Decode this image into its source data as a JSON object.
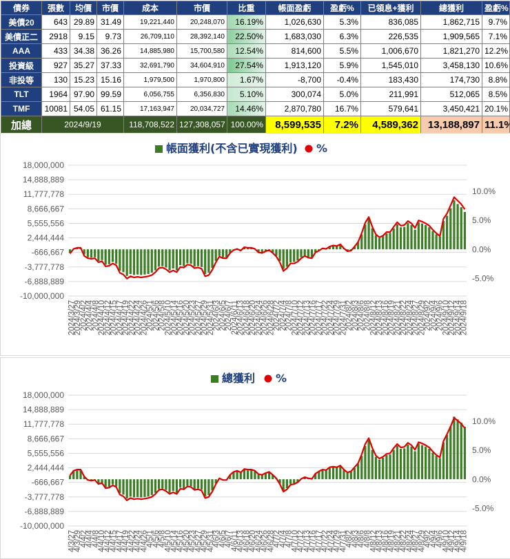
{
  "table": {
    "headers": [
      "債券",
      "張數",
      "均價",
      "市價",
      "成本",
      "市價",
      "比重",
      "帳面盈虧",
      "盈虧%",
      "已領息+獲利",
      "總獲利",
      "盈虧%"
    ],
    "rows": [
      {
        "name": "美債20",
        "qty": "643",
        "avg": "29.89",
        "price": "31.49",
        "cost": "19,221,440",
        "value": "20,248,070",
        "weight": "16.19%",
        "wpct": 16.19,
        "paper": "1,026,630",
        "paper_pct": "5.3%",
        "div": "836,085",
        "total": "1,862,715",
        "total_pct": "9.7%"
      },
      {
        "name": "美債正二",
        "qty": "2918",
        "avg": "9.15",
        "price": "9.73",
        "cost": "26,709,110",
        "value": "28,392,140",
        "weight": "22.50%",
        "wpct": 22.5,
        "paper": "1,683,030",
        "paper_pct": "6.3%",
        "div": "226,535",
        "total": "1,909,565",
        "total_pct": "7.1%"
      },
      {
        "name": "AAA",
        "qty": "433",
        "avg": "34.38",
        "price": "36.26",
        "cost": "14,885,980",
        "value": "15,700,580",
        "weight": "12.54%",
        "wpct": 12.54,
        "paper": "814,600",
        "paper_pct": "5.5%",
        "div": "1,006,670",
        "total": "1,821,270",
        "total_pct": "12.2%"
      },
      {
        "name": "投資級",
        "qty": "927",
        "avg": "35.27",
        "price": "37.33",
        "cost": "32,691,790",
        "value": "34,604,910",
        "weight": "27.54%",
        "wpct": 27.54,
        "paper": "1,913,120",
        "paper_pct": "5.9%",
        "div": "1,545,010",
        "total": "3,458,130",
        "total_pct": "10.6%"
      },
      {
        "name": "非投等",
        "qty": "130",
        "avg": "15.23",
        "price": "15.16",
        "cost": "1,979,500",
        "value": "1,970,800",
        "weight": "1.67%",
        "wpct": 1.67,
        "paper": "-8,700",
        "paper_pct": "-0.4%",
        "div": "183,430",
        "total": "174,730",
        "total_pct": "8.8%"
      },
      {
        "name": "TLT",
        "qty": "1964",
        "avg": "97.90",
        "price": "99.59",
        "cost": "6,056,755",
        "value": "6,356,830",
        "weight": "5.10%",
        "wpct": 5.1,
        "paper": "300,074",
        "paper_pct": "5.0%",
        "div": "211,991",
        "total": "512,065",
        "total_pct": "8.5%"
      },
      {
        "name": "TMF",
        "qty": "10081",
        "avg": "54.05",
        "price": "61.15",
        "cost": "17,163,947",
        "value": "20,034,727",
        "weight": "14.46%",
        "wpct": 14.46,
        "paper": "2,870,780",
        "paper_pct": "16.7%",
        "div": "579,641",
        "total": "3,450,421",
        "total_pct": "20.1%"
      }
    ],
    "total": {
      "label": "加總",
      "date": "2024/9/19",
      "cost": "118,708,522",
      "value": "127,308,057",
      "weight": "100.00%",
      "paper": "8,599,535",
      "paper_pct": "7.2%",
      "div": "4,589,362",
      "total": "13,188,897",
      "total_pct": "11.1%"
    }
  },
  "chart_data": [
    {
      "type": "bar",
      "title": "",
      "legend": [
        "帳面獲利(不含已實現獲利)",
        "%"
      ],
      "legend_position": "top",
      "colors": {
        "bar": "#3a7d22",
        "line": "#e00000"
      },
      "y_ticks": [
        "18,000,000",
        "14,888,889",
        "11,777,778",
        "8,666,667",
        "5,555,556",
        "2,444,444",
        "-666,667",
        "-3,777,778",
        "-6,888,889",
        "-10,000,000"
      ],
      "y2_ticks": [
        "10.0%",
        "5.0%",
        "0.0%",
        "-5.0%"
      ],
      "ylim": [
        -10000000,
        18000000
      ],
      "y2lim": [
        -0.08,
        0.145
      ],
      "grid": true,
      "x_tick_labels": [
        "2024/3/27",
        "2024/3/29",
        "2024/4/2",
        "2024/4/4",
        "2024/4/8",
        "2024/4/10",
        "2024/4/12",
        "2024/4/15",
        "2024/4/17",
        "2024/4/19",
        "2024/4/22",
        "2024/4/24",
        "2024/4/26",
        "2024/5/1",
        "2024/5/6",
        "2024/5/8",
        "2024/5/10",
        "2024/5/14",
        "2024/5/16",
        "2024/5/20",
        "2024/5/23",
        "2024/5/27",
        "2024/5/29",
        "2024/5/31",
        "2024/6/3",
        "2024/6/5",
        "2024/6/7",
        "2024/6/11",
        "2024/6/13",
        "2024/6/18",
        "2024/6/20",
        "2024/6/24",
        "2024/6/26",
        "2024/6/28",
        "2024/7/2",
        "2024/7/4",
        "2024/7/8",
        "2024/7/10",
        "2024/7/12",
        "2024/7/13",
        "2024/7/16",
        "2024/7/17",
        "2024/7/22",
        "2024/7/24",
        "2024/7/29",
        "2024/7/31",
        "2024/8/2",
        "2024/8/3",
        "2024/8/6",
        "2024/8/8",
        "2024/8/12",
        "2024/8/13",
        "2024/8/16",
        "2024/8/19",
        "2024/8/21",
        "2024/8/22",
        "2024/8/24",
        "2024/8/27",
        "2024/8/29",
        "2024/9/2",
        "2024/9/4",
        "2024/9/6",
        "2024/9/10",
        "2024/9/12",
        "2024/9/14",
        "2024/9/18"
      ],
      "series": [
        {
          "name": "帳面獲利(不含已實現獲利)",
          "values": [
            -800000,
            100000,
            300000,
            300000,
            -1100000,
            -1700000,
            -1800000,
            -1700000,
            -2500000,
            -2300000,
            -3300000,
            -3200000,
            -2700000,
            -3100000,
            -4600000,
            -4900000,
            -5700000,
            -5300000,
            -5500000,
            -5400000,
            -5500000,
            -5400000,
            -5300000,
            -5000000,
            -4500000,
            -3700000,
            -3600000,
            -3900000,
            -4500000,
            -4100000,
            -4500000,
            -3400000,
            -3600000,
            -3000000,
            -3100000,
            -3700000,
            -3600000,
            -3800000,
            -5300000,
            -5000000,
            -4000000,
            -2500000,
            -1400000,
            -1700000,
            -1700000,
            -700000,
            -100000,
            100000,
            -200000,
            500000,
            300000,
            400000,
            100000,
            -600000,
            -700000,
            -300000,
            -100000,
            -700000,
            -1400000,
            -2500000,
            -4200000,
            -3700000,
            -2800000,
            -2700000,
            -2400000,
            -1700000,
            -1300000,
            -1600000,
            -1700000,
            -600000,
            -200000,
            200000,
            100000,
            600000,
            800000,
            700000,
            1000000,
            200000,
            -400000,
            -200000,
            600000,
            1500000,
            3200000,
            5300000,
            6500000,
            4500000,
            3000000,
            2400000,
            2800000,
            3400000,
            3500000,
            4500000,
            5400000,
            4700000,
            4800000,
            5600000,
            5200000,
            4200000,
            5800000,
            5500000,
            5200000,
            4700000,
            3900000,
            3200000,
            2700000,
            6100000,
            7200000,
            8800000,
            10500000,
            9700000,
            9000000,
            8000000
          ]
        },
        {
          "name": "%",
          "values": [
            -0.007,
            0.001,
            0.003,
            0.003,
            -0.011,
            -0.015,
            -0.016,
            -0.015,
            -0.022,
            -0.02,
            -0.029,
            -0.028,
            -0.024,
            -0.027,
            -0.04,
            -0.043,
            -0.05,
            -0.046,
            -0.048,
            -0.047,
            -0.048,
            -0.047,
            -0.046,
            -0.044,
            -0.039,
            -0.032,
            -0.031,
            -0.034,
            -0.039,
            -0.036,
            -0.039,
            -0.03,
            -0.031,
            -0.026,
            -0.027,
            -0.032,
            -0.031,
            -0.033,
            -0.046,
            -0.044,
            -0.035,
            -0.022,
            -0.012,
            -0.015,
            -0.015,
            -0.006,
            -0.001,
            0.001,
            -0.002,
            0.004,
            0.003,
            0.003,
            0.001,
            -0.005,
            -0.006,
            -0.003,
            -0.001,
            -0.006,
            -0.012,
            -0.022,
            -0.037,
            -0.032,
            -0.024,
            -0.024,
            -0.021,
            -0.015,
            -0.011,
            -0.014,
            -0.015,
            -0.005,
            -0.002,
            0.002,
            0.001,
            0.005,
            0.007,
            0.006,
            0.009,
            0.002,
            -0.003,
            -0.002,
            0.005,
            0.013,
            0.028,
            0.046,
            0.056,
            0.039,
            0.026,
            0.021,
            0.024,
            0.03,
            0.03,
            0.039,
            0.047,
            0.041,
            0.042,
            0.049,
            0.045,
            0.037,
            0.05,
            0.048,
            0.045,
            0.041,
            0.034,
            0.028,
            0.023,
            0.053,
            0.062,
            0.076,
            0.09,
            0.084,
            0.078,
            0.069
          ]
        }
      ]
    },
    {
      "type": "bar",
      "title": "",
      "legend": [
        "總獲利",
        "%"
      ],
      "legend_position": "top",
      "colors": {
        "bar": "#3a7d22",
        "line": "#e00000"
      },
      "y_ticks": [
        "18,000,000",
        "14,888,889",
        "11,777,778",
        "8,666,667",
        "5,555,556",
        "2,444,444",
        "-666,667",
        "-3,777,778",
        "-6,888,889",
        "-10,000,000"
      ],
      "y2_ticks": [
        "10.0%",
        "5.0%",
        "0.0%",
        "-5.0%"
      ],
      "ylim": [
        -10000000,
        18000000
      ],
      "y2lim": [
        -0.08,
        0.145
      ],
      "grid": true,
      "x_tick_labels": [
        "4/3/27",
        "4/3/29",
        "4/4/2",
        "4/4/4",
        "4/4/8",
        "4/4/10",
        "4/4/12",
        "4/4/15",
        "4/4/17",
        "4/4/19",
        "4/4/22",
        "4/4/24",
        "4/4/26",
        "4/5/1",
        "4/5/6",
        "4/5/8",
        "4/5/10",
        "4/5/14",
        "4/5/16",
        "4/5/20",
        "4/5/23",
        "4/5/27",
        "4/5/29",
        "4/5/31",
        "4/6/3",
        "4/6/5",
        "4/6/7",
        "4/6/11",
        "4/6/13",
        "4/6/18",
        "4/6/20",
        "4/6/24",
        "4/6/26",
        "4/6/28",
        "4/7/2",
        "4/7/4",
        "4/7/8",
        "4/7/10",
        "4/7/12",
        "4/7/13",
        "4/7/16",
        "4/7/17",
        "4/7/22",
        "4/7/24",
        "4/7/29",
        "4/7/31",
        "4/8/2",
        "4/8/3",
        "4/8/6",
        "4/8/8",
        "4/8/12",
        "4/8/13",
        "4/8/16",
        "4/8/19",
        "4/8/21",
        "4/8/22",
        "4/8/24",
        "4/8/27",
        "4/8/29",
        "4/9/2",
        "4/9/4",
        "4/9/6",
        "4/9/10",
        "4/9/12",
        "4/9/14",
        "4/9/18"
      ],
      "series": [
        {
          "name": "總獲利",
          "values": [
            800000,
            1700000,
            1900000,
            1900000,
            500000,
            -100000,
            -200000,
            -100000,
            -900000,
            -700000,
            -1700000,
            -1600000,
            -1100000,
            -1500000,
            -3000000,
            -3300000,
            -4100000,
            -3700000,
            -3900000,
            -3800000,
            -3900000,
            -3800000,
            -3700000,
            -3400000,
            -2900000,
            -2100000,
            -2000000,
            -2300000,
            -2900000,
            -2500000,
            -2900000,
            -1800000,
            -2000000,
            -1400000,
            -1500000,
            -2100000,
            -2000000,
            -2200000,
            -3700000,
            -3400000,
            -2400000,
            -900000,
            200000,
            -100000,
            -100000,
            900000,
            1500000,
            1700000,
            1400000,
            2100000,
            1900000,
            2000000,
            1700000,
            1000000,
            900000,
            1300000,
            1500000,
            900000,
            200000,
            -900000,
            -2400000,
            -1900000,
            -1000000,
            -900000,
            -600000,
            100000,
            500000,
            200000,
            100000,
            1200000,
            1600000,
            2000000,
            1900000,
            2400000,
            2600000,
            2500000,
            2800000,
            2000000,
            1400000,
            1600000,
            2400000,
            3300000,
            5000000,
            7100000,
            8300000,
            6300000,
            4800000,
            4200000,
            4600000,
            5200000,
            5300000,
            6300000,
            7200000,
            6500000,
            6600000,
            7400000,
            7000000,
            6000000,
            7600000,
            7300000,
            7000000,
            6500000,
            5700000,
            5000000,
            4500000,
            7900000,
            9500000,
            11300000,
            13400000,
            12800000,
            12100000,
            11200000
          ]
        },
        {
          "name": "%",
          "values": [
            0.007,
            0.015,
            0.017,
            0.017,
            0.005,
            -0.001,
            -0.002,
            -0.001,
            -0.008,
            -0.006,
            -0.015,
            -0.014,
            -0.01,
            -0.013,
            -0.026,
            -0.029,
            -0.036,
            -0.032,
            -0.034,
            -0.033,
            -0.034,
            -0.033,
            -0.032,
            -0.03,
            -0.025,
            -0.018,
            -0.017,
            -0.02,
            -0.025,
            -0.022,
            -0.025,
            -0.016,
            -0.017,
            -0.012,
            -0.013,
            -0.018,
            -0.017,
            -0.019,
            -0.032,
            -0.03,
            -0.021,
            -0.008,
            0.002,
            -0.001,
            -0.001,
            0.008,
            0.013,
            0.015,
            0.012,
            0.018,
            0.017,
            0.017,
            0.015,
            0.009,
            0.008,
            0.011,
            0.013,
            0.008,
            0.002,
            -0.008,
            -0.021,
            -0.017,
            -0.009,
            -0.008,
            -0.005,
            0.001,
            0.004,
            0.002,
            0.001,
            0.01,
            0.014,
            0.017,
            0.016,
            0.021,
            0.022,
            0.021,
            0.024,
            0.017,
            0.012,
            0.014,
            0.021,
            0.028,
            0.043,
            0.061,
            0.071,
            0.054,
            0.041,
            0.036,
            0.039,
            0.044,
            0.045,
            0.054,
            0.061,
            0.055,
            0.056,
            0.063,
            0.059,
            0.051,
            0.064,
            0.062,
            0.059,
            0.055,
            0.048,
            0.042,
            0.038,
            0.066,
            0.078,
            0.091,
            0.106,
            0.101,
            0.096,
            0.088
          ]
        }
      ]
    }
  ]
}
